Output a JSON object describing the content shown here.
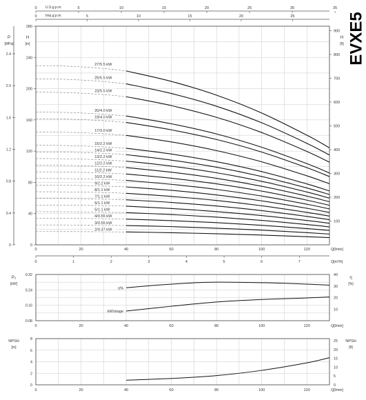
{
  "product": {
    "code": "EVXE5"
  },
  "top_axes": {
    "usgpm": {
      "label": "U.S.g.p.m.",
      "ticks": [
        0,
        5,
        10,
        15,
        20,
        25,
        30,
        35
      ]
    },
    "impgpm": {
      "label": "Imp.g.p.m.",
      "ticks": [
        0,
        5,
        10,
        15,
        20,
        25
      ]
    }
  },
  "chart_data": [
    {
      "type": "line",
      "panel": "head",
      "ylabel_left": "H",
      "ylabel_left_unit": "[m]",
      "ylabel_p": "P",
      "ylabel_p_unit": "[MPa]",
      "ylabel_right": "H",
      "ylabel_right_unit": "[ft]",
      "xlim": [
        0,
        130
      ],
      "ylim": [
        0,
        280
      ],
      "x_ticks": [
        0,
        20,
        40,
        60,
        80,
        100,
        120
      ],
      "xlabel": "Q[l/min]",
      "y_ticks_m": [
        0,
        40,
        80,
        120,
        160,
        200,
        240,
        280
      ],
      "y_ticks_p": [
        "0",
        "0.4",
        "0.8",
        "1.2",
        "1.6",
        "2.0",
        "2.4"
      ],
      "y_ticks_ft": [
        100,
        200,
        300,
        400,
        500,
        600,
        700,
        800,
        900
      ],
      "x_ticks_m3h": [
        0,
        1,
        2,
        3,
        4,
        5,
        6,
        7
      ],
      "xlabel_m3h": "Q[m³/h]",
      "grid": true,
      "curve_x": [
        40,
        60,
        80,
        100,
        120,
        130
      ],
      "series": [
        {
          "name": "2/0.37 kW",
          "shutoff": 17,
          "values": [
            16.5,
            15.5,
            14.2,
            12.5,
            10.4,
            9.2
          ]
        },
        {
          "name": "3/0.55 kW",
          "shutoff": 25.5,
          "values": [
            24.7,
            23.3,
            21.3,
            18.8,
            15.6,
            13.8
          ]
        },
        {
          "name": "4/0.55 kW",
          "shutoff": 34,
          "values": [
            33,
            31,
            28.4,
            25,
            20.8,
            18.4
          ]
        },
        {
          "name": "5/1.1 kW",
          "shutoff": 42.5,
          "values": [
            41.2,
            38.8,
            35.5,
            31.3,
            26,
            23
          ]
        },
        {
          "name": "6/1.1 kW",
          "shutoff": 51,
          "values": [
            49.5,
            46.5,
            42.6,
            37.5,
            31.2,
            27.6
          ]
        },
        {
          "name": "7/1.1 kW",
          "shutoff": 59.5,
          "values": [
            57.7,
            54.3,
            49.7,
            43.8,
            36.4,
            32.2
          ]
        },
        {
          "name": "8/1.1 kW",
          "shutoff": 68,
          "values": [
            66,
            62,
            56.8,
            50,
            41.6,
            36.8
          ]
        },
        {
          "name": "9/2.2 kW",
          "shutoff": 76.5,
          "values": [
            74.2,
            69.8,
            63.9,
            56.3,
            46.8,
            41.4
          ]
        },
        {
          "name": "10/2.2 kW",
          "shutoff": 85,
          "values": [
            82.5,
            77.5,
            71,
            62.5,
            52,
            46
          ]
        },
        {
          "name": "11/2.2 kW",
          "shutoff": 93.5,
          "values": [
            90.7,
            85.3,
            78.1,
            68.8,
            57.2,
            50.6
          ]
        },
        {
          "name": "12/2.2 kW",
          "shutoff": 102,
          "values": [
            99,
            93,
            85.2,
            75,
            62.4,
            55.2
          ]
        },
        {
          "name": "13/2.2 kW",
          "shutoff": 110.5,
          "values": [
            107.2,
            100.8,
            92.3,
            81.3,
            67.6,
            59.8
          ]
        },
        {
          "name": "14/2.2 kW",
          "shutoff": 119,
          "values": [
            115.5,
            108.5,
            99.4,
            87.5,
            72.8,
            64.4
          ]
        },
        {
          "name": "15/2.2 kW",
          "shutoff": 127.5,
          "values": [
            123.7,
            116.3,
            106.5,
            93.8,
            78,
            69
          ]
        },
        {
          "name": "17/3.0 kW",
          "shutoff": 144.5,
          "values": [
            140.2,
            131.8,
            120.7,
            106.3,
            88.4,
            78.2
          ]
        },
        {
          "name": "19/4.0 kW",
          "shutoff": 161.5,
          "values": [
            156.7,
            147.3,
            134.9,
            118.8,
            98.8,
            87.4
          ]
        },
        {
          "name": "20/4.0 kW",
          "shutoff": 170,
          "values": [
            165,
            155,
            142,
            125,
            104,
            92
          ]
        },
        {
          "name": "23/5.5 kW",
          "shutoff": 195.5,
          "values": [
            189.7,
            178.3,
            163.3,
            143.8,
            119.6,
            105.8
          ]
        },
        {
          "name": "25/5.5 kW",
          "shutoff": 212.5,
          "values": [
            206.2,
            193.8,
            177.5,
            156.3,
            130,
            115
          ]
        },
        {
          "name": "27/5.5 kW",
          "shutoff": 229.5,
          "values": [
            222.7,
            209.3,
            191.7,
            168.8,
            140.4,
            124.2
          ]
        }
      ]
    },
    {
      "type": "line",
      "panel": "power-efficiency",
      "ylabel_left": "P₂",
      "ylabel_left_unit": "[kW]",
      "ylabel_right": "η",
      "ylabel_right_unit": "[%]",
      "xlim": [
        0,
        130
      ],
      "ylim": [
        0.08,
        0.32
      ],
      "y_ticks": [
        "0.08",
        "0.16",
        "0.24",
        "0.32"
      ],
      "y_ticks_right": [
        10,
        20,
        30,
        40
      ],
      "x_ticks": [
        0,
        20,
        40,
        60,
        80,
        100,
        120
      ],
      "xlabel": "Q[l/min]",
      "grid": true,
      "series": [
        {
          "name": "η%",
          "axis": "right",
          "x": [
            40,
            55,
            75,
            90,
            110,
            130
          ],
          "values": [
            28.5,
            31,
            33.2,
            33.2,
            32.4,
            30.8
          ]
        },
        {
          "name": "kW/stage",
          "axis": "left",
          "x": [
            40,
            60,
            80,
            100,
            120,
            130
          ],
          "values": [
            0.13,
            0.155,
            0.177,
            0.19,
            0.198,
            0.203
          ]
        }
      ]
    },
    {
      "type": "line",
      "panel": "npsh",
      "ylabel_left": "NPSH",
      "ylabel_left_unit": "[m]",
      "ylabel_right": "NPSH",
      "ylabel_right_unit": "[ft]",
      "xlim": [
        0,
        130
      ],
      "ylim": [
        0,
        8
      ],
      "y_ticks": [
        0,
        2,
        4,
        6,
        8
      ],
      "y_ticks_right": [
        0,
        5,
        10,
        15,
        20,
        25
      ],
      "x_ticks": [
        0,
        20,
        40,
        60,
        80,
        100,
        120
      ],
      "xlabel": "Q[l/min]",
      "grid": true,
      "series": [
        {
          "name": "NPSH",
          "x": [
            40,
            60,
            80,
            100,
            120,
            130
          ],
          "values": [
            0.8,
            1.1,
            1.6,
            2.5,
            3.8,
            4.7
          ]
        }
      ]
    }
  ]
}
